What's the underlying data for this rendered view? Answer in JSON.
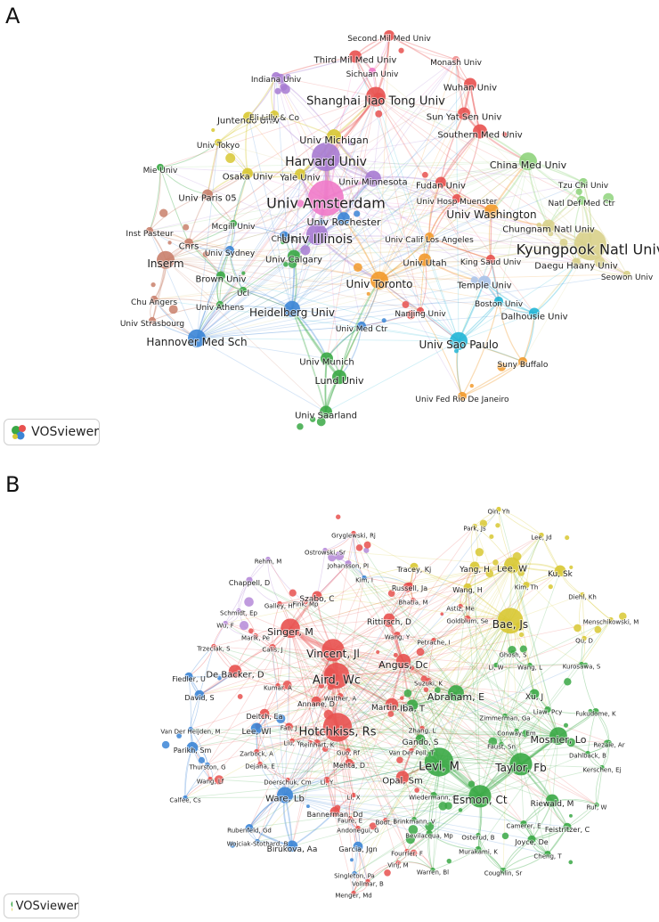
{
  "panels": [
    {
      "letter": "A",
      "logo_text": "VOSviewer",
      "colors": {
        "red": "#e8514f",
        "green": "#3aa845",
        "blue": "#3b85d6",
        "yellow": "#d8c832",
        "purple": "#a77bd2",
        "cyan": "#21b5d6",
        "orange": "#f29a2b",
        "pink": "#f07ac9",
        "salmon": "#c9806b",
        "lightgreen": "#8fd37c",
        "khaki": "#d8d08a",
        "lightblue": "#a9c3ea",
        "rose": "#f09090"
      },
      "labels": [
        {
          "t": "Second Mil Med Univ",
          "c": "red"
        },
        {
          "t": "Third Mil Med Univ",
          "c": "red"
        },
        {
          "t": "Monash Univ",
          "c": "rose"
        },
        {
          "t": "Sichuan Univ",
          "c": "pink"
        },
        {
          "t": "Indiana Univ",
          "c": "purple"
        },
        {
          "t": "Wuhan Univ",
          "c": "red"
        },
        {
          "t": "Shanghai Jiao Tong Univ",
          "c": "red"
        },
        {
          "t": "Juntendo Univ",
          "c": "yellow"
        },
        {
          "t": "Eli Lilly & Co",
          "c": "yellow"
        },
        {
          "t": "Sun Yat Sen Univ",
          "c": "red"
        },
        {
          "t": "Univ Michigan",
          "c": "yellow"
        },
        {
          "t": "Southern Med Univ",
          "c": "red"
        },
        {
          "t": "Univ Tokyo",
          "c": "yellow"
        },
        {
          "t": "Harvard Univ",
          "c": "purple"
        },
        {
          "t": "China Med Univ",
          "c": "lightgreen"
        },
        {
          "t": "Mie Univ",
          "c": "green"
        },
        {
          "t": "Osaka Univ",
          "c": "yellow"
        },
        {
          "t": "Yale Univ",
          "c": "yellow"
        },
        {
          "t": "Univ Minnesota",
          "c": "purple"
        },
        {
          "t": "Fudan Univ",
          "c": "red"
        },
        {
          "t": "Tzu Chi Univ",
          "c": "lightgreen"
        },
        {
          "t": "Univ Paris 05",
          "c": "salmon"
        },
        {
          "t": "Univ Amsterdam",
          "c": "pink"
        },
        {
          "t": "Univ Hosp Muenster",
          "c": "red"
        },
        {
          "t": "Natl Def Med Ctr",
          "c": "lightgreen"
        },
        {
          "t": "Univ Washington",
          "c": "orange"
        },
        {
          "t": "Univ Rochester",
          "c": "blue"
        },
        {
          "t": "Mcgill Univ",
          "c": "green"
        },
        {
          "t": "Chungnam Natl Univ",
          "c": "khaki"
        },
        {
          "t": "Inst Pasteur",
          "c": "salmon"
        },
        {
          "t": "Charite",
          "c": "blue"
        },
        {
          "t": "Univ Illinois",
          "c": "purple"
        },
        {
          "t": "Univ Calif Los Angeles",
          "c": "orange"
        },
        {
          "t": "Cnrs",
          "c": "salmon"
        },
        {
          "t": "Kyungpook Natl Univ",
          "c": "khaki"
        },
        {
          "t": "Univ Sydney",
          "c": "blue"
        },
        {
          "t": "Univ Calgary",
          "c": "green"
        },
        {
          "t": "Univ Utah",
          "c": "orange"
        },
        {
          "t": "Inserm",
          "c": "salmon"
        },
        {
          "t": "King Saud Univ",
          "c": "red"
        },
        {
          "t": "Daegu Haany Univ",
          "c": "khaki"
        },
        {
          "t": "Brown Univ",
          "c": "green"
        },
        {
          "t": "Seowon Univ",
          "c": "khaki"
        },
        {
          "t": "Ucl",
          "c": "green"
        },
        {
          "t": "Univ Toronto",
          "c": "orange"
        },
        {
          "t": "Temple Univ",
          "c": "lightblue"
        },
        {
          "t": "Chu Angers",
          "c": "salmon"
        },
        {
          "t": "Univ Athens",
          "c": "green"
        },
        {
          "t": "Boston Univ",
          "c": "cyan"
        },
        {
          "t": "Heidelberg Univ",
          "c": "blue"
        },
        {
          "t": "Nanjing Univ",
          "c": "red"
        },
        {
          "t": "Dalhousie Univ",
          "c": "cyan"
        },
        {
          "t": "Univ Strasbourg",
          "c": "salmon"
        },
        {
          "t": "Univ Med Ctr",
          "c": "blue"
        },
        {
          "t": "Hannover Med Sch",
          "c": "blue"
        },
        {
          "t": "Univ Sao Paulo",
          "c": "cyan"
        },
        {
          "t": "Univ Munich",
          "c": "green"
        },
        {
          "t": "Suny Buffalo",
          "c": "orange"
        },
        {
          "t": "Lund Univ",
          "c": "green"
        },
        {
          "t": "Univ Fed Rio De Janeiro",
          "c": "orange"
        },
        {
          "t": "Univ Saarland",
          "c": "green"
        }
      ]
    },
    {
      "letter": "B",
      "logo_text": "VOSviewer",
      "colors": {
        "red": "#e8514f",
        "green": "#3aa845",
        "blue": "#3b85d6",
        "yellow": "#d8c832",
        "purple": "#b58ad8"
      },
      "labels": [
        {
          "t": "Gryglewski, Rj",
          "c": "red"
        },
        {
          "t": "Qin, Yh",
          "c": "yellow"
        },
        {
          "t": "Park, Js",
          "c": "yellow"
        },
        {
          "t": "Lee, Jd",
          "c": "yellow"
        },
        {
          "t": "Ostrowski, Sr",
          "c": "purple"
        },
        {
          "t": "Rehm, M",
          "c": "purple"
        },
        {
          "t": "Johansson, PI",
          "c": "purple"
        },
        {
          "t": "Tracey, Kj",
          "c": "yellow"
        },
        {
          "t": "Yang, H",
          "c": "yellow"
        },
        {
          "t": "Lee, W",
          "c": "yellow"
        },
        {
          "t": "Ku, Sk",
          "c": "yellow"
        },
        {
          "t": "Kim, I",
          "c": "blue"
        },
        {
          "t": "Russell, Ja",
          "c": "red"
        },
        {
          "t": "Kim, Th",
          "c": "yellow"
        },
        {
          "t": "Chappell, D",
          "c": "purple"
        },
        {
          "t": "Wang, H",
          "c": "yellow"
        },
        {
          "t": "Diehl, Kh",
          "c": "yellow"
        },
        {
          "t": "Szabo, C",
          "c": "red"
        },
        {
          "t": "Bhatia, M",
          "c": "red"
        },
        {
          "t": "Galley, Hf",
          "c": "red"
        },
        {
          "t": "Fink, Mp",
          "c": "red"
        },
        {
          "t": "Astiz, Me",
          "c": "red"
        },
        {
          "t": "Schmidt, Ep",
          "c": "purple"
        },
        {
          "t": "Goldblum, Se",
          "c": "red"
        },
        {
          "t": "Menschikowski, M",
          "c": "yellow"
        },
        {
          "t": "Rittirsch, D",
          "c": "red"
        },
        {
          "t": "Bae, Js",
          "c": "yellow"
        },
        {
          "t": "Wu, F",
          "c": "purple"
        },
        {
          "t": "Singer, M",
          "c": "red"
        },
        {
          "t": "Marik, Pe",
          "c": "red"
        },
        {
          "t": "Wang, Y",
          "c": "red"
        },
        {
          "t": "Petrache, I",
          "c": "red"
        },
        {
          "t": "Qu, D",
          "c": "yellow"
        },
        {
          "t": "Vincent, Jl",
          "c": "red"
        },
        {
          "t": "Trzeciak, S",
          "c": "red"
        },
        {
          "t": "Calis, J",
          "c": "red"
        },
        {
          "t": "Ghosh, S",
          "c": "green"
        },
        {
          "t": "Angus, Dc",
          "c": "red"
        },
        {
          "t": "Li, W",
          "c": "green"
        },
        {
          "t": "Wang, L",
          "c": "green"
        },
        {
          "t": "Kurosawa, S",
          "c": "green"
        },
        {
          "t": "De Backer, D",
          "c": "red"
        },
        {
          "t": "Aird, Wc",
          "c": "red"
        },
        {
          "t": "Suzuki, K",
          "c": "red"
        },
        {
          "t": "Fiedler, U",
          "c": "blue"
        },
        {
          "t": "Kumar, A",
          "c": "red"
        },
        {
          "t": "Walther, A",
          "c": "red"
        },
        {
          "t": "Abraham, E",
          "c": "green"
        },
        {
          "t": "Xu, J",
          "c": "green"
        },
        {
          "t": "Liaw, Pcy",
          "c": "green"
        },
        {
          "t": "David, S",
          "c": "blue"
        },
        {
          "t": "Annane, D",
          "c": "red"
        },
        {
          "t": "Martin, Gs",
          "c": "red"
        },
        {
          "t": "Iba, T",
          "c": "green"
        },
        {
          "t": "Fukudome, K",
          "c": "green"
        },
        {
          "t": "Deitch, Ea",
          "c": "red"
        },
        {
          "t": "Zimmerman, Ga",
          "c": "green"
        },
        {
          "t": "Van Der Heijden, M",
          "c": "blue"
        },
        {
          "t": "Lee, Wl",
          "c": "blue"
        },
        {
          "t": "Fan, J",
          "c": "red"
        },
        {
          "t": "Hotchkiss, Rs",
          "c": "red"
        },
        {
          "t": "Zhang, L",
          "c": "red"
        },
        {
          "t": "Conway, Em",
          "c": "green"
        },
        {
          "t": "Mosnier, Lo",
          "c": "green"
        },
        {
          "t": "Gando, S",
          "c": "green"
        },
        {
          "t": "Liu, Y",
          "c": "red"
        },
        {
          "t": "Reinhart, K",
          "c": "red"
        },
        {
          "t": "Faust, Sn",
          "c": "green"
        },
        {
          "t": "Rezaie, Ar",
          "c": "green"
        },
        {
          "t": "Parikh, Sm",
          "c": "blue"
        },
        {
          "t": "Zarbock, A",
          "c": "red"
        },
        {
          "t": "Guo, Rf",
          "c": "red"
        },
        {
          "t": "Van Der Poll, T",
          "c": "red"
        },
        {
          "t": "Dahlback, B",
          "c": "green"
        },
        {
          "t": "Thurston, G",
          "c": "blue"
        },
        {
          "t": "Dejana, E",
          "c": "red"
        },
        {
          "t": "Mehta, D",
          "c": "red"
        },
        {
          "t": "Levi, M",
          "c": "green"
        },
        {
          "t": "Taylor, Fb",
          "c": "green"
        },
        {
          "t": "Kerschen, Ej",
          "c": "green"
        },
        {
          "t": "Wang, Lf",
          "c": "red"
        },
        {
          "t": "Doerschuk, Cm",
          "c": "red"
        },
        {
          "t": "Li, Y",
          "c": "red"
        },
        {
          "t": "Opal, Sm",
          "c": "red"
        },
        {
          "t": "Calfee, Cs",
          "c": "blue"
        },
        {
          "t": "Ware, Lb",
          "c": "blue"
        },
        {
          "t": "Li, X",
          "c": "red"
        },
        {
          "t": "Wiedermann, Cj",
          "c": "green"
        },
        {
          "t": "Esmon, Ct",
          "c": "green"
        },
        {
          "t": "Riewald, M",
          "c": "green"
        },
        {
          "t": "Ruf, W",
          "c": "green"
        },
        {
          "t": "Bannerman, Dd",
          "c": "red"
        },
        {
          "t": "Faure, E",
          "c": "red"
        },
        {
          "t": "Bodt, I",
          "c": "red"
        },
        {
          "t": "Brinkmann, V",
          "c": "green"
        },
        {
          "t": "Camerer, E",
          "c": "green"
        },
        {
          "t": "Rubenfeld, Gd",
          "c": "blue"
        },
        {
          "t": "Andonegui, G",
          "c": "red"
        },
        {
          "t": "Feistritzer, C",
          "c": "green"
        },
        {
          "t": "Bevilacqua, Mp",
          "c": "green"
        },
        {
          "t": "Osterud, B",
          "c": "green"
        },
        {
          "t": "Wojciak-Stothard, B",
          "c": "blue"
        },
        {
          "t": "Joyce, De",
          "c": "green"
        },
        {
          "t": "Birukova, Aa",
          "c": "blue"
        },
        {
          "t": "Garcia, Jgn",
          "c": "blue"
        },
        {
          "t": "Murakami, K",
          "c": "green"
        },
        {
          "t": "Fourrier, F",
          "c": "red"
        },
        {
          "t": "Cheng, T",
          "c": "green"
        },
        {
          "t": "Vinj, M",
          "c": "red"
        },
        {
          "t": "Singleton, Pa",
          "c": "blue"
        },
        {
          "t": "Warren, Bl",
          "c": "green"
        },
        {
          "t": "Coughlin, Sr",
          "c": "green"
        },
        {
          "t": "Vollmar, B",
          "c": "red"
        },
        {
          "t": "Menger, Md",
          "c": "red"
        }
      ]
    }
  ]
}
